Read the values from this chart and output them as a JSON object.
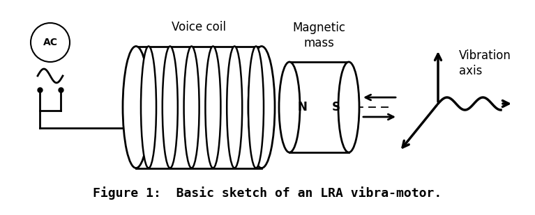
{
  "title": "Figure 1:  Basic sketch of an LRA vibra-motor.",
  "title_fontsize": 13,
  "bg_color": "#ffffff",
  "text_color": "#000000",
  "label_voice_coil": "Voice coil",
  "label_magnetic_mass": "Magnetic\nmass",
  "label_vibration_axis": "Vibration\naxis",
  "label_ac": "AC",
  "label_N": "N",
  "label_S": "S",
  "figsize": [
    7.67,
    3.09
  ],
  "dpi": 100
}
